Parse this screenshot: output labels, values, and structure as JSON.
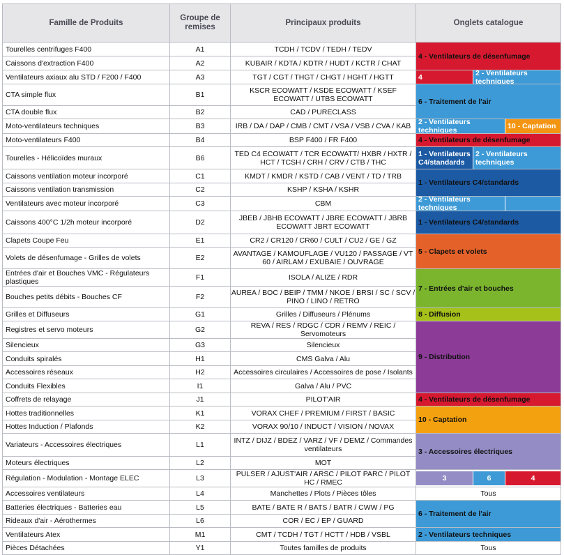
{
  "colors": {
    "red": "#d7192f",
    "light_blue": "#3d9ad7",
    "dark_blue": "#1c5aa4",
    "orange": "#f39512",
    "dark_orange": "#e4622a",
    "green": "#7ab52d",
    "yellow_green": "#a5c11a",
    "purple": "#8c3c97",
    "amber": "#f4a10f",
    "violet": "#948cc4",
    "header_bg": "#e6e6e9"
  },
  "header": {
    "famille": "Famille de Produits",
    "groupe_line1": "Groupe de",
    "groupe_line2": "remises",
    "produits": "Principaux produits",
    "onglets": "Onglets catalogue"
  },
  "rows": [
    {
      "famille": "Tourelles centrifuges F400",
      "groupe": "A1",
      "produits": "TCDH / TCDV / TEDH / TEDV"
    },
    {
      "famille": "Caissons d'extraction F400",
      "groupe": "A2",
      "produits": "KUBAIR / KDTA / KDTR / HUDT / KCTR / CHAT"
    },
    {
      "famille": "Ventilateurs axiaux alu STD / F200 / F400",
      "groupe": "A3",
      "produits": "TGT / CGT / THGT / CHGT / HGHT / HGTT"
    },
    {
      "famille": "CTA simple flux",
      "groupe": "B1",
      "produits": "KSCR ECOWATT / KSDE ECOWATT / KSEF ECOWATT / UTBS ECOWATT"
    },
    {
      "famille": "CTA double flux",
      "groupe": "B2",
      "produits": "CAD / PURECLASS"
    },
    {
      "famille": "Moto-ventilateurs techniques",
      "groupe": "B3",
      "produits": "IRB / DA / DAP / CMB / CMT / VSA / VSB / CVA / KAB"
    },
    {
      "famille": "Moto-ventilateurs F400",
      "groupe": "B4",
      "produits": "BSP F400 / FR F400"
    },
    {
      "famille": "Tourelles - Hélicoïdes muraux",
      "groupe": "B6",
      "produits": "TED C4 ECOWATT / TCR ECOWATT/ HXBR / HXTR / HCT / TCSH / CRH / CRV / CTB / THC"
    },
    {
      "famille": "Caissons ventilation moteur incorporé",
      "groupe": "C1",
      "produits": "KMDT / KMDR / KSTD / CAB / VENT / TD / TRB"
    },
    {
      "famille": "Caissons ventilation transmission",
      "groupe": "C2",
      "produits": "KSHP / KSHA / KSHR"
    },
    {
      "famille": "Ventilateurs avec moteur incorporé",
      "groupe": "C3",
      "produits": "CBM"
    },
    {
      "famille": "Caissons 400°C 1/2h moteur incorporé",
      "groupe": "D2",
      "produits": "JBEB / JBHB ECOWATT / JBRE ECOWATT / JBRB ECOWATT JBRT ECOWATT"
    },
    {
      "famille": "Clapets Coupe Feu",
      "groupe": "E1",
      "produits": "CR2 / CR120 / CR60 / CULT / CU2 / GE / GZ"
    },
    {
      "famille": "Volets de désenfumage - Grilles de volets",
      "groupe": "E2",
      "produits": "AVANTAGE / KAMOUFLAGE / VU120 / PASSAGE / VT 60 / AIRLAM / EXUBAIE / OUVRAGE"
    },
    {
      "famille": "Entrées d'air et Bouches VMC - Régulateurs plastiques",
      "groupe": "F1",
      "produits": "ISOLA / ALIZE / RDR"
    },
    {
      "famille": "Bouches petits débits - Bouches CF",
      "groupe": "F2",
      "produits": "AUREA / BOC / BEIP / TMM / NKOE / BRSI / SC / SCV / PINO / LINO / RETRO"
    },
    {
      "famille": "Grilles et Diffuseurs",
      "groupe": "G1",
      "produits": "Grilles / Diffuseurs / Plénums"
    },
    {
      "famille": "Registres et servo moteurs",
      "groupe": "G2",
      "produits": "REVA / RES / RDGC / CDR / REMV / REIC / Servomoteurs"
    },
    {
      "famille": "Silencieux",
      "groupe": "G3",
      "produits": "Silencieux"
    },
    {
      "famille": "Conduits spiralés",
      "groupe": "H1",
      "produits": "CMS Galva / Alu"
    },
    {
      "famille": "Accessoires réseaux",
      "groupe": "H2",
      "produits": "Accessoires circulaires / Accessoires de pose / Isolants"
    },
    {
      "famille": "Conduits Flexibles",
      "groupe": "I1",
      "produits": "Galva / Alu / PVC"
    },
    {
      "famille": "Coffrets de relayage",
      "groupe": "J1",
      "produits": "PILOT'AIR"
    },
    {
      "famille": "Hottes traditionnelles",
      "groupe": "K1",
      "produits": "VORAX CHEF / PREMIUM / FIRST / BASIC"
    },
    {
      "famille": "Hottes Induction / Plafonds",
      "groupe": "K2",
      "produits": "VORAX 90/10 / INDUCT / VISION / NOVAX"
    },
    {
      "famille": "Variateurs - Accessoires électriques",
      "groupe": "L1",
      "produits": "INTZ / DIJZ / BDEZ / VARZ / VF / DEMZ / Commandes ventilateurs"
    },
    {
      "famille": "Moteurs électriques",
      "groupe": "L2",
      "produits": "MOT"
    },
    {
      "famille": "Régulation - Modulation - Montage ELEC",
      "groupe": "L3",
      "produits": "PULSER / AJUST'AIR / ARSC / PILOT PARC / PILOT HC / RMEC"
    },
    {
      "famille": "Accessoires ventilateurs",
      "groupe": "L4",
      "produits": "Manchettes / Plots / Pièces tôles"
    },
    {
      "famille": "Batteries électriques - Batteries eau",
      "groupe": "L5",
      "produits": "BATE / BATE R / BATS / BATR / CWW / PG"
    },
    {
      "famille": "Rideaux d'air - Aérothermes",
      "groupe": "L6",
      "produits": "COR / EC / EP / GUARD"
    },
    {
      "famille": "Ventilateurs Atex",
      "groupe": "M1",
      "produits": "CMT / TCDH / TGT / HCTT / HDB / VSBL"
    },
    {
      "famille": "Pièces Détachées",
      "groupe": "Y1",
      "produits": "Toutes familles de produits"
    }
  ],
  "tabs": {
    "t1": "4 - Ventilateurs de désenfumage",
    "t3_a": "4",
    "t3_b": "2 - Ventilateurs techniques",
    "t4": "6 - Traitement de l'air",
    "t6_a": "2 - Ventilateurs techniques",
    "t6_b": "10 - Captation",
    "t7": "4 - Ventilateurs de désenfumage",
    "t8_a": "1 - Ventilateurs C4/standards",
    "t8_b": "2 - Ventilateurs techniques",
    "t9": "1 - Ventilateurs C4/standards",
    "t11": "2 - Ventilateurs techniques",
    "t12": "1 - Ventilateurs C4/standards",
    "t13": "5 - Clapets et volets",
    "t15": "7 - Entrées d'air et bouches",
    "t17": "8 - Diffusion",
    "t18": "9 - Distribution",
    "t23": "4 - Ventilateurs de désenfumage",
    "t24": "10 - Captation",
    "t26": "3 - Accessoires électriques",
    "t28_a": "3",
    "t28_b": "6",
    "t28_c": "4",
    "t29": "Tous",
    "t30": "6 - Traitement de l'air",
    "t32": "2 - Ventilateurs techniques",
    "t33": "Tous"
  }
}
